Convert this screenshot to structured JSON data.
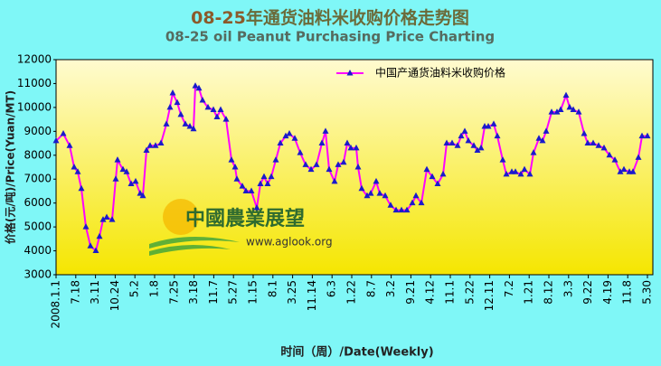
{
  "chart_data": {
    "type": "line",
    "title_part1": "08-25",
    "title_part2": "年通货油料米收购价格走势图",
    "subtitle": "08-25 oil Peanut Purchasing Price Charting",
    "y_label": "价格(元/吨)/Price(Yuan/MT)",
    "x_label": "时间（周）/Date(Weekly)",
    "watermark": "中國農業展望",
    "watermark_url": "www.aglook.org",
    "ylim": [
      3000,
      12000
    ],
    "yticks": [
      3000,
      4000,
      5000,
      6000,
      7000,
      8000,
      9000,
      10000,
      11000,
      12000
    ],
    "xlim": [
      0,
      660
    ],
    "xticks": [
      {
        "value": 0,
        "label": "2008.1.1"
      },
      {
        "value": 21.8,
        "label": "7.18"
      },
      {
        "value": 43.6,
        "label": "3.11"
      },
      {
        "value": 65.4,
        "label": "10.24"
      },
      {
        "value": 87.2,
        "label": "5.2"
      },
      {
        "value": 109,
        "label": "1.8"
      },
      {
        "value": 130.8,
        "label": "7.25"
      },
      {
        "value": 152.6,
        "label": "3.18"
      },
      {
        "value": 174.4,
        "label": "11.7"
      },
      {
        "value": 196.2,
        "label": "5.27"
      },
      {
        "value": 218,
        "label": "1.15"
      },
      {
        "value": 239.8,
        "label": "8.1"
      },
      {
        "value": 261.6,
        "label": "3.25"
      },
      {
        "value": 283.4,
        "label": "11.14"
      },
      {
        "value": 305.2,
        "label": "6.3"
      },
      {
        "value": 327,
        "label": "1.22"
      },
      {
        "value": 348.8,
        "label": "8.7"
      },
      {
        "value": 370.6,
        "label": "3.2"
      },
      {
        "value": 392.4,
        "label": "9.21"
      },
      {
        "value": 414.2,
        "label": "4.12"
      },
      {
        "value": 436,
        "label": "11.1"
      },
      {
        "value": 457.8,
        "label": "5.22"
      },
      {
        "value": 479.6,
        "label": "12.11"
      },
      {
        "value": 501.4,
        "label": "7.2"
      },
      {
        "value": 523.2,
        "label": "1.21"
      },
      {
        "value": 545,
        "label": "8.12"
      },
      {
        "value": 566.8,
        "label": "3.3"
      },
      {
        "value": 588.6,
        "label": "9.22"
      },
      {
        "value": 610.4,
        "label": "4.19"
      },
      {
        "value": 632.2,
        "label": "11.8"
      },
      {
        "value": 654,
        "label": "5.30"
      }
    ],
    "grid": false,
    "x": [
      0,
      8,
      15,
      20,
      24,
      28,
      33,
      38,
      44,
      48,
      52,
      56,
      62,
      66,
      68,
      74,
      78,
      83,
      88,
      93,
      96,
      100,
      104,
      110,
      116,
      122,
      126,
      129,
      134,
      138,
      143,
      148,
      152,
      154,
      158,
      162,
      168,
      174,
      178,
      182,
      188,
      194,
      198,
      200,
      206,
      210,
      216,
      222,
      226,
      230,
      234,
      238,
      243,
      248,
      254,
      258,
      264,
      270,
      276,
      282,
      288,
      294,
      298,
      302,
      308,
      312,
      318,
      322,
      326,
      332,
      334,
      338,
      344,
      348,
      354,
      358,
      364,
      370,
      376,
      382,
      388,
      394,
      398,
      404,
      410,
      416,
      422,
      428,
      432,
      438,
      444,
      448,
      452,
      456,
      462,
      466,
      470,
      474,
      478,
      484,
      488,
      494,
      498,
      504,
      508,
      514,
      518,
      524,
      528,
      534,
      538,
      542,
      548,
      554,
      558,
      564,
      568,
      572,
      578,
      584,
      588,
      594,
      600,
      606,
      612,
      618,
      624,
      628,
      634,
      638,
      644,
      648,
      654
    ],
    "series": [
      {
        "name": "中国产通货油料米收购价格",
        "color": "#ff00ff",
        "marker_color": "#1a1acc",
        "values": [
          8600,
          8900,
          8400,
          7500,
          7300,
          6600,
          5000,
          4200,
          4000,
          4600,
          5300,
          5400,
          5300,
          7000,
          7800,
          7400,
          7300,
          6800,
          6900,
          6400,
          6300,
          8200,
          8400,
          8400,
          8500,
          9300,
          10000,
          10600,
          10200,
          9700,
          9300,
          9200,
          9100,
          10900,
          10800,
          10300,
          10000,
          9900,
          9600,
          9900,
          9500,
          7800,
          7500,
          7000,
          6700,
          6500,
          6500,
          5800,
          6800,
          7100,
          6800,
          7100,
          7800,
          8500,
          8800,
          8900,
          8700,
          8100,
          7600,
          7400,
          7600,
          8500,
          9000,
          7400,
          6900,
          7600,
          7700,
          8500,
          8300,
          8300,
          7500,
          6600,
          6300,
          6400,
          6900,
          6400,
          6300,
          5900,
          5700,
          5700,
          5700,
          6000,
          6300,
          6000,
          7400,
          7100,
          6800,
          7200,
          8500,
          8500,
          8400,
          8800,
          9000,
          8600,
          8400,
          8200,
          8300,
          9200,
          9200,
          9300,
          8800,
          7800,
          7200,
          7300,
          7300,
          7200,
          7400,
          7200,
          8100,
          8700,
          8600,
          9000,
          9800,
          9800,
          9900,
          10500,
          10000,
          9900,
          9800,
          8900,
          8500,
          8500,
          8400,
          8300,
          8000,
          7800,
          7300,
          7400,
          7300,
          7300,
          7900,
          8800,
          8800
        ]
      }
    ]
  }
}
